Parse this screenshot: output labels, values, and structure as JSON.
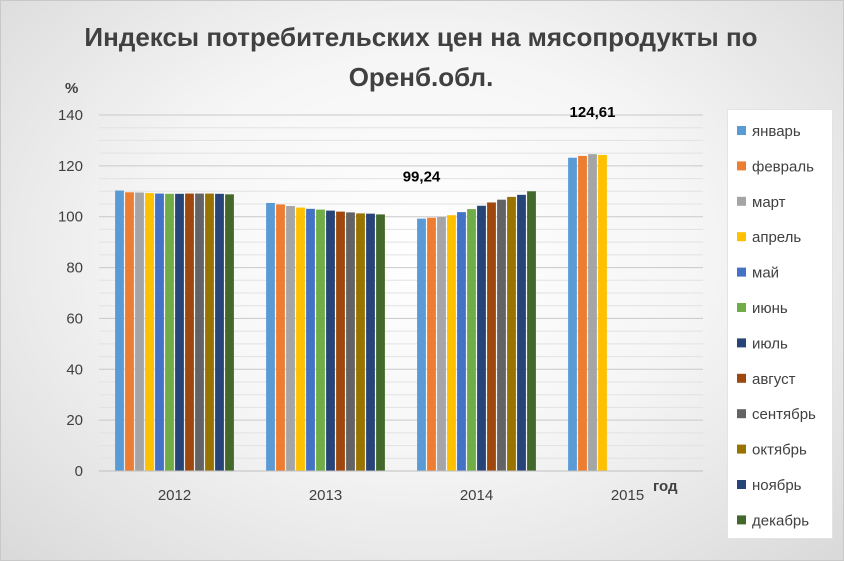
{
  "chart_data": {
    "type": "bar",
    "title": "Индексы потребительских цен на мясопродукты по Оренб.обл.",
    "ylabel": "%",
    "xlabel": "год",
    "ylim": [
      0,
      140
    ],
    "yticks": [
      "0",
      "20",
      "40",
      "60",
      "80",
      "100",
      "120",
      "140"
    ],
    "categories": [
      "2012",
      "2013",
      "2014",
      "2015"
    ],
    "grid": true,
    "legend_position": "right",
    "series": [
      {
        "name": "январь",
        "color": "#5B9BD5",
        "values": [
          110.3,
          105.4,
          99.24,
          123.2
        ]
      },
      {
        "name": "февраль",
        "color": "#ED7D31",
        "values": [
          109.6,
          104.8,
          99.6,
          123.9
        ]
      },
      {
        "name": "март",
        "color": "#A5A5A5",
        "values": [
          109.5,
          104.2,
          99.9,
          124.61
        ]
      },
      {
        "name": "апрель",
        "color": "#FFC000",
        "values": [
          109.3,
          103.6,
          100.6,
          124.3
        ]
      },
      {
        "name": "май",
        "color": "#4472C4",
        "values": [
          109.1,
          103.1,
          101.8,
          null
        ]
      },
      {
        "name": "июнь",
        "color": "#70AD47",
        "values": [
          109.0,
          102.8,
          103.0,
          null
        ]
      },
      {
        "name": "июль",
        "color": "#264478",
        "values": [
          109.0,
          102.4,
          104.3,
          null
        ]
      },
      {
        "name": "август",
        "color": "#9E480E",
        "values": [
          109.1,
          102.0,
          105.6,
          null
        ]
      },
      {
        "name": "сентябрь",
        "color": "#636363",
        "values": [
          109.1,
          101.7,
          106.7,
          null
        ]
      },
      {
        "name": "октябрь",
        "color": "#997300",
        "values": [
          109.1,
          101.3,
          107.8,
          null
        ]
      },
      {
        "name": "ноябрь",
        "color": "#264478",
        "values": [
          109.0,
          101.2,
          108.6,
          null
        ]
      },
      {
        "name": "декабрь",
        "color": "#43682B",
        "values": [
          108.8,
          100.9,
          110.0,
          null
        ]
      }
    ],
    "annotations": [
      {
        "text": "99,24",
        "category": "2014",
        "series": "январь"
      },
      {
        "text": "124,61",
        "category": "2015",
        "series": "март"
      }
    ]
  }
}
